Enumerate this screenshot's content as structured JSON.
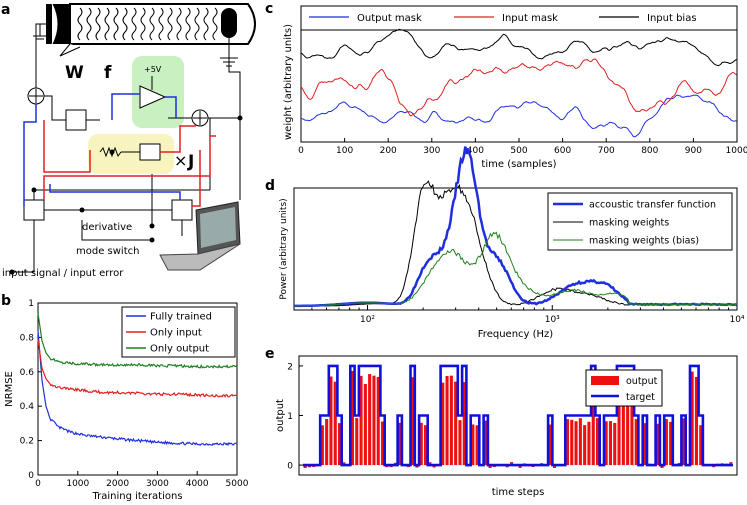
{
  "panels": {
    "a": "a",
    "b": "b",
    "c": "c",
    "d": "d",
    "e": "e"
  },
  "panel_a": {
    "W": "W",
    "f": "f",
    "J": "J",
    "times": "×",
    "vplus": "+5V",
    "derivative": "derivative",
    "mode_switch": "mode switch",
    "input_signal": "input signal / input error",
    "colors": {
      "blue": "#1f2fe0",
      "red": "#e02020",
      "green_bg": "#c8f0c0",
      "yellow_bg": "#f8f4c0"
    }
  },
  "chart_data": [
    {
      "id": "b",
      "type": "line",
      "xlabel": "Training iterations",
      "ylabel": "NRMSE",
      "xlim": [
        0,
        5000
      ],
      "ylim": [
        0,
        1
      ],
      "xticks": [
        "0",
        "1000",
        "2000",
        "3000",
        "4000",
        "5000"
      ],
      "yticks": [
        "0",
        "0.2",
        "0.4",
        "0.6",
        "0.8",
        "1"
      ],
      "legend_position": "top-right",
      "series": [
        {
          "name": "Fully trained",
          "color": "#1f2fe0",
          "x": [
            0,
            100,
            200,
            300,
            500,
            800,
            1200,
            1600,
            2000,
            2500,
            3000,
            3500,
            4000,
            4500,
            5000
          ],
          "values": [
            0.84,
            0.55,
            0.4,
            0.33,
            0.28,
            0.25,
            0.23,
            0.22,
            0.21,
            0.2,
            0.19,
            0.185,
            0.18,
            0.18,
            0.18
          ]
        },
        {
          "name": "Only input",
          "color": "#e02020",
          "x": [
            0,
            100,
            200,
            300,
            500,
            800,
            1200,
            1600,
            2000,
            2500,
            3000,
            3500,
            4000,
            4500,
            5000
          ],
          "values": [
            0.79,
            0.62,
            0.56,
            0.53,
            0.51,
            0.5,
            0.49,
            0.48,
            0.48,
            0.475,
            0.47,
            0.47,
            0.465,
            0.46,
            0.46
          ]
        },
        {
          "name": "Only output",
          "color": "#208020",
          "x": [
            0,
            100,
            200,
            300,
            500,
            800,
            1200,
            1600,
            2000,
            2500,
            3000,
            3500,
            4000,
            4500,
            5000
          ],
          "values": [
            0.94,
            0.78,
            0.71,
            0.68,
            0.66,
            0.65,
            0.645,
            0.64,
            0.64,
            0.64,
            0.635,
            0.635,
            0.63,
            0.63,
            0.63
          ]
        }
      ]
    },
    {
      "id": "c",
      "type": "line",
      "xlabel": "time (samples)",
      "ylabel": "weight (arbitrary units)",
      "xlim": [
        0,
        1000
      ],
      "xticks": [
        "0",
        "100",
        "200",
        "300",
        "400",
        "500",
        "600",
        "700",
        "800",
        "900",
        "1000"
      ],
      "legend_position": "top",
      "series": [
        {
          "name": "Output mask",
          "color": "#1f2fe0",
          "offset": 0.22
        },
        {
          "name": "Input mask",
          "color": "#e02020",
          "offset": 0.52
        },
        {
          "name": "Input bias",
          "color": "#000000",
          "offset": 0.82
        }
      ]
    },
    {
      "id": "d",
      "type": "line",
      "xlabel": "Frequency (Hz)",
      "ylabel": "Power (arbitrary units)",
      "xscale": "log",
      "xlim": [
        40,
        10000
      ],
      "xticks": [
        "10²",
        "10³",
        "10⁴"
      ],
      "legend_position": "top-right",
      "series": [
        {
          "name": "accoustic transfer function",
          "color": "#1f2fe0"
        },
        {
          "name": "masking weights",
          "color": "#000000"
        },
        {
          "name": "masking weights (bias)",
          "color": "#208020"
        }
      ]
    },
    {
      "id": "e",
      "type": "bar",
      "xlabel": "time steps",
      "ylabel": "output",
      "yticks": [
        "0",
        "1",
        "2"
      ],
      "ylim": [
        -0.2,
        2.2
      ],
      "legend_position": "top-right",
      "series": [
        {
          "name": "output",
          "color": "#ee1010"
        },
        {
          "name": "target",
          "color": "#1010dd"
        }
      ],
      "target": [
        0,
        0,
        0,
        0,
        1,
        1,
        2,
        2,
        1,
        0,
        0,
        2,
        1,
        2,
        2,
        2,
        2,
        2,
        1,
        0,
        0,
        0,
        1,
        0,
        0,
        2,
        0,
        1,
        1,
        0,
        0,
        0,
        2,
        2,
        2,
        2,
        1,
        2,
        0,
        1,
        1,
        0,
        1,
        0,
        0,
        0,
        0,
        0,
        0,
        0,
        0,
        0,
        0,
        0,
        0,
        0,
        0,
        1,
        0,
        0,
        0,
        1,
        1,
        1,
        1,
        1,
        1,
        2,
        1,
        0,
        1,
        1,
        1,
        2,
        2,
        2,
        2,
        1,
        0,
        1,
        0,
        0,
        1,
        0,
        1,
        1,
        0,
        0,
        1,
        0,
        2,
        2,
        1,
        0,
        0,
        0,
        0,
        0,
        0,
        0
      ]
    }
  ]
}
